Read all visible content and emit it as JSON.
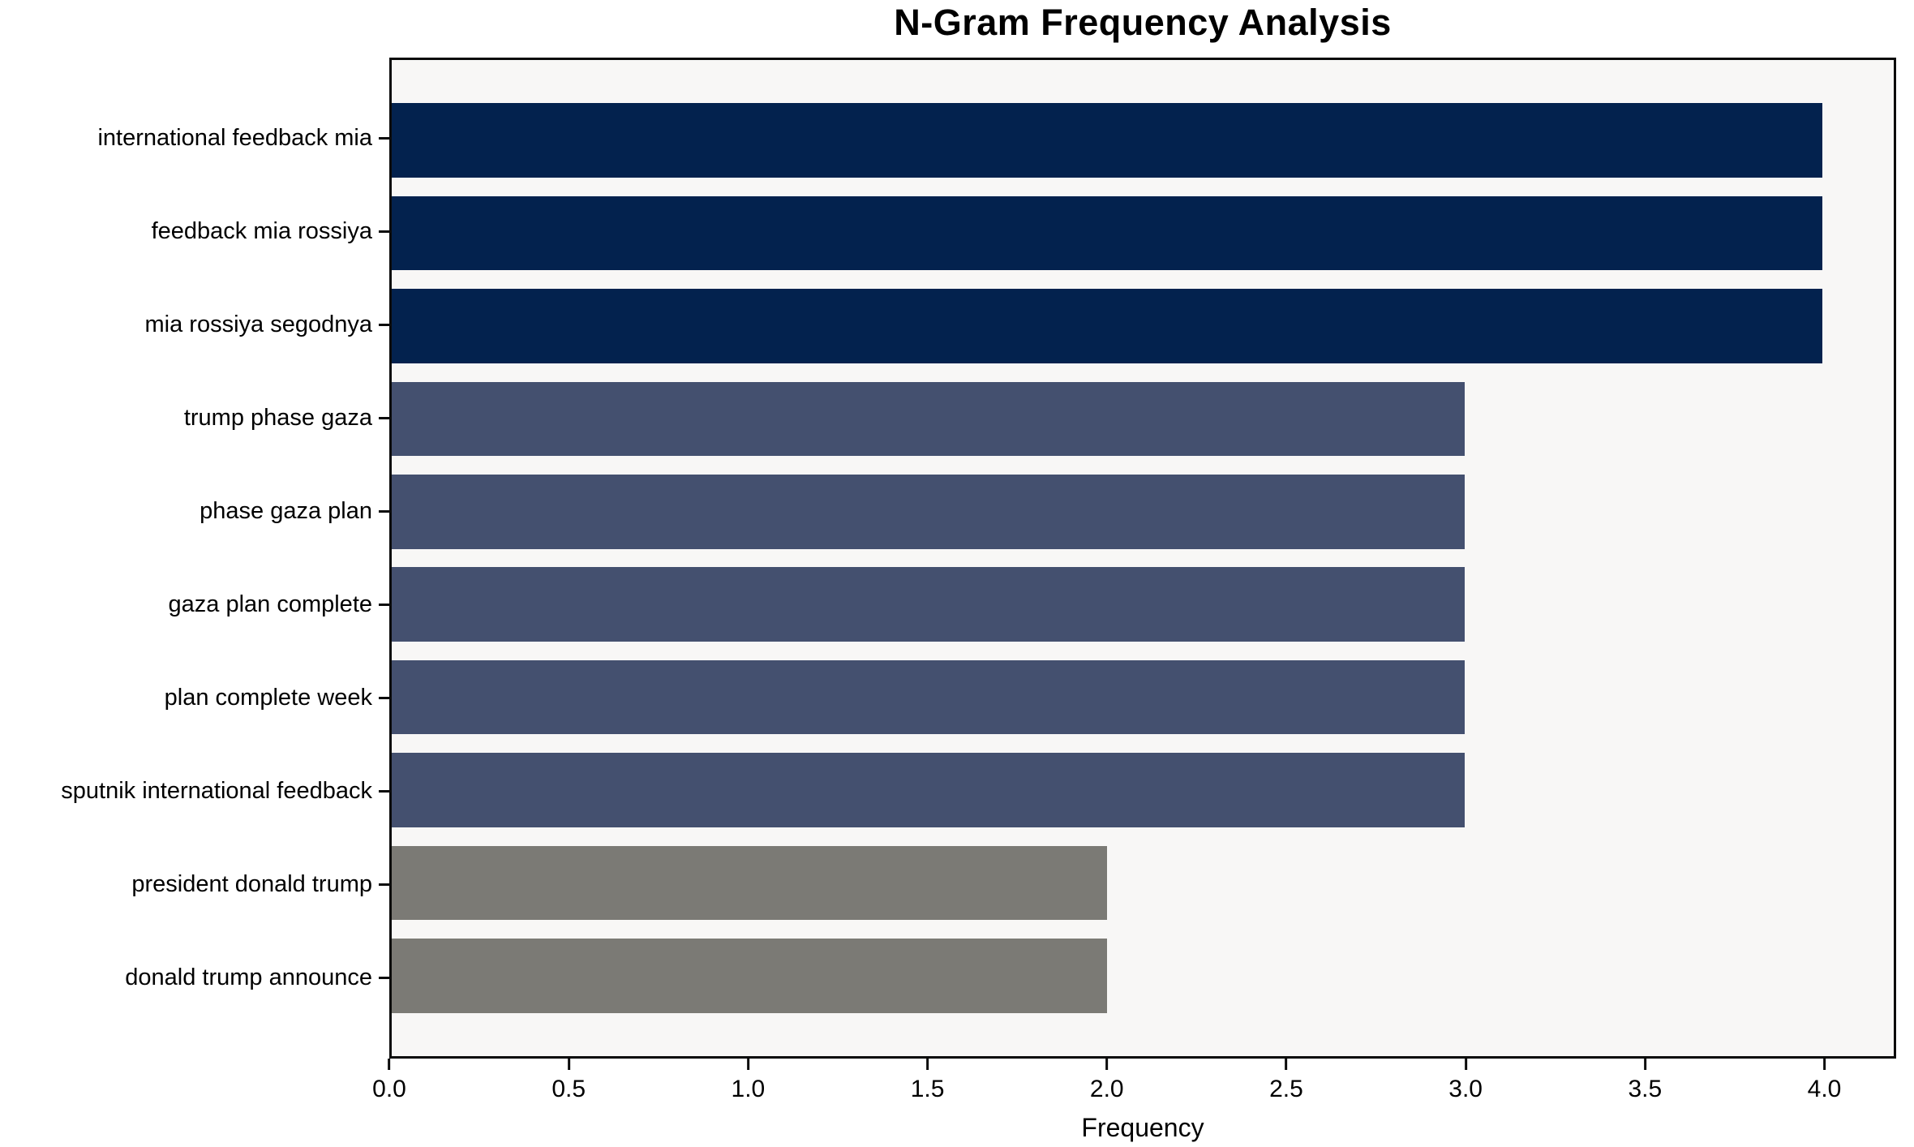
{
  "chart_data": {
    "type": "bar",
    "orientation": "horizontal",
    "title": "N-Gram Frequency Analysis",
    "xlabel": "Frequency",
    "ylabel": "",
    "categories": [
      "international feedback mia",
      "feedback mia rossiya",
      "mia rossiya segodnya",
      "trump phase gaza",
      "phase gaza plan",
      "gaza plan complete",
      "plan complete week",
      "sputnik international feedback",
      "president donald trump",
      "donald trump announce"
    ],
    "values": [
      4,
      4,
      4,
      3,
      3,
      3,
      3,
      3,
      2,
      2
    ],
    "bar_colors": [
      "#03224e",
      "#03224e",
      "#03224e",
      "#44506f",
      "#44506f",
      "#44506f",
      "#44506f",
      "#44506f",
      "#7b7a75",
      "#7b7a75"
    ],
    "xlim": [
      0,
      4.2
    ],
    "xticks": [
      0.0,
      0.5,
      1.0,
      1.5,
      2.0,
      2.5,
      3.0,
      3.5,
      4.0
    ],
    "xtick_labels": [
      "0.0",
      "0.5",
      "1.0",
      "1.5",
      "2.0",
      "2.5",
      "3.0",
      "3.5",
      "4.0"
    ],
    "grid": false,
    "legend": "none",
    "bar_height_fraction": 0.8,
    "plot_background": "#f8f7f6",
    "figure_background": "#ffffff",
    "frame_color": "#0b0b0b"
  }
}
